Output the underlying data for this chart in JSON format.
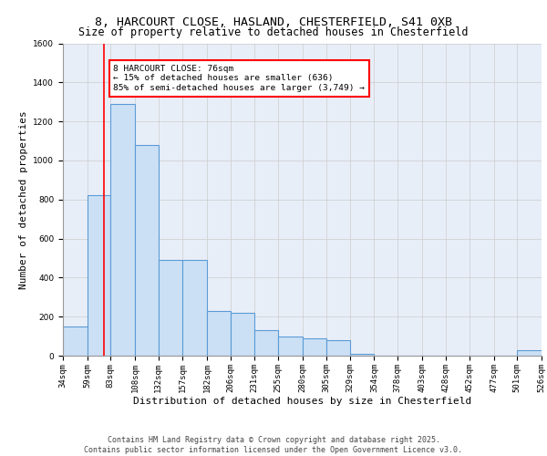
{
  "title_line1": "8, HARCOURT CLOSE, HASLAND, CHESTERFIELD, S41 0XB",
  "title_line2": "Size of property relative to detached houses in Chesterfield",
  "xlabel": "Distribution of detached houses by size in Chesterfield",
  "ylabel": "Number of detached properties",
  "bar_edges": [
    34,
    59,
    83,
    108,
    132,
    157,
    182,
    206,
    231,
    255,
    280,
    305,
    329,
    354,
    378,
    403,
    428,
    452,
    477,
    501,
    526
  ],
  "bar_heights": [
    150,
    820,
    1290,
    1080,
    490,
    490,
    230,
    220,
    130,
    100,
    90,
    80,
    10,
    0,
    0,
    0,
    0,
    0,
    0,
    30
  ],
  "bar_color": "#cce0f5",
  "bar_edge_color": "#5b9bd5",
  "bar_linewidth": 0.8,
  "vline_x": 76,
  "vline_color": "red",
  "vline_linewidth": 1.2,
  "annotation_text": "8 HARCOURT CLOSE: 76sqm\n← 15% of detached houses are smaller (636)\n85% of semi-detached houses are larger (3,749) →",
  "annotation_box_color": "white",
  "annotation_box_edge_color": "red",
  "ylim": [
    0,
    1600
  ],
  "yticks": [
    0,
    200,
    400,
    600,
    800,
    1000,
    1200,
    1400,
    1600
  ],
  "grid_color": "#cccccc",
  "background_color": "#e8eef8",
  "footer_line1": "Contains HM Land Registry data © Crown copyright and database right 2025.",
  "footer_line2": "Contains public sector information licensed under the Open Government Licence v3.0.",
  "title_fontsize": 9.5,
  "subtitle_fontsize": 8.5,
  "tick_fontsize": 6.5,
  "label_fontsize": 8,
  "footer_fontsize": 6
}
